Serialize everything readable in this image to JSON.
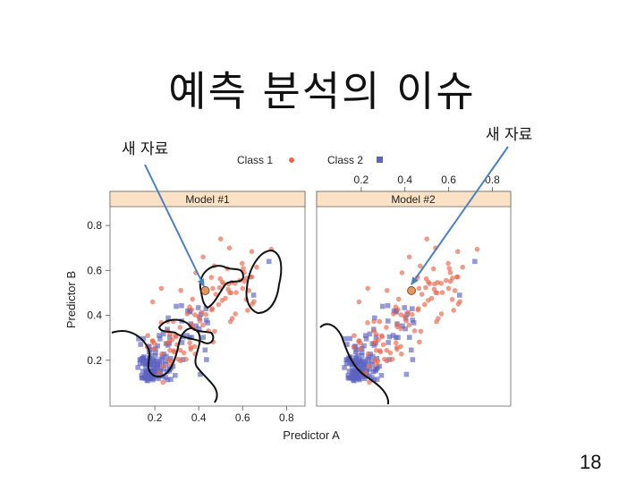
{
  "slide": {
    "title": "예측 분석의 이슈",
    "annotation_left": "새 자료",
    "annotation_right": "새 자료",
    "page_number": "18"
  },
  "chart_data": {
    "type": "scatter",
    "xlabel": "Predictor A",
    "ylabel": "Predictor B",
    "xlim": [
      0,
      0.88
    ],
    "ylim": [
      0,
      0.88
    ],
    "x_ticks": [
      0.2,
      0.4,
      0.6,
      0.8
    ],
    "y_ticks": [
      0.2,
      0.4,
      0.6,
      0.8
    ],
    "grid": false,
    "legend_placement": "top",
    "series": [
      {
        "name": "Class 1",
        "color": "#e8654a",
        "marker": "circle"
      },
      {
        "name": "Class 2",
        "color": "#5c63c0",
        "marker": "square"
      }
    ],
    "panels": [
      {
        "title": "Model #1"
      },
      {
        "title": "Model #2"
      }
    ],
    "new_sample": {
      "x": 0.43,
      "y": 0.51,
      "color": "#e8955a"
    }
  }
}
